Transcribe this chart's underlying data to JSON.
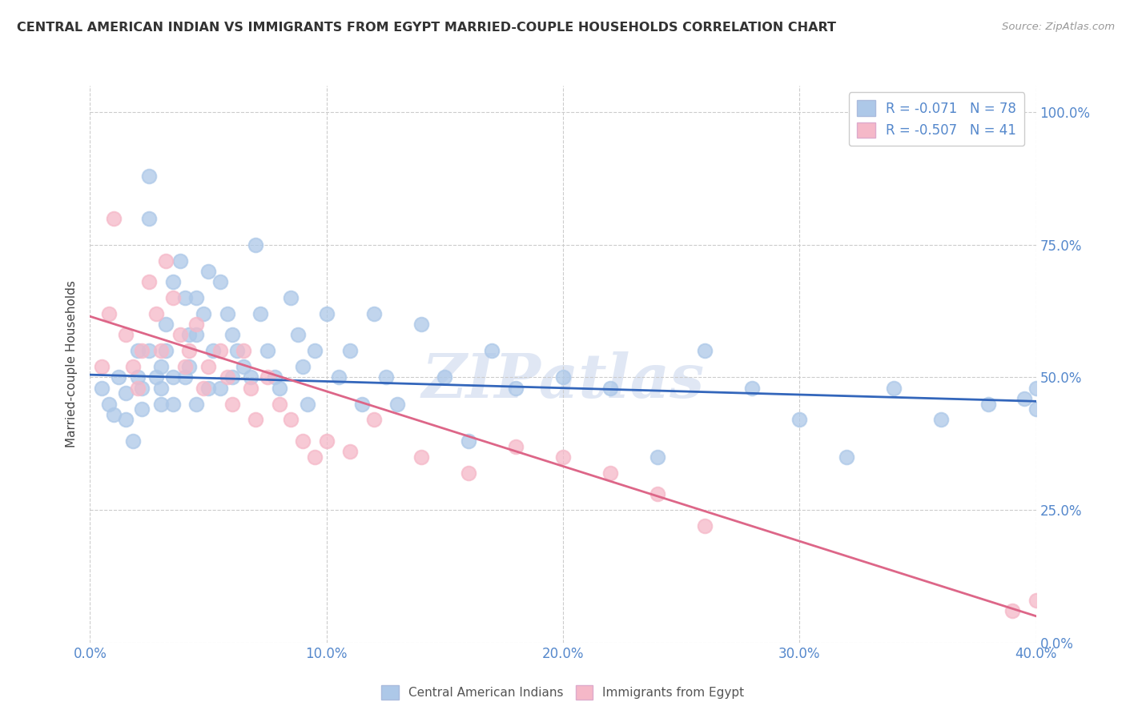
{
  "title": "CENTRAL AMERICAN INDIAN VS IMMIGRANTS FROM EGYPT MARRIED-COUPLE HOUSEHOLDS CORRELATION CHART",
  "source": "Source: ZipAtlas.com",
  "xlim": [
    0.0,
    0.4
  ],
  "ylim": [
    0.0,
    1.05
  ],
  "blue_R": -0.071,
  "blue_N": 78,
  "pink_R": -0.507,
  "pink_N": 41,
  "blue_color": "#adc8e8",
  "pink_color": "#f5b8c8",
  "blue_line_color": "#3366bb",
  "pink_line_color": "#dd6688",
  "legend_label_blue": "Central American Indians",
  "legend_label_pink": "Immigrants from Egypt",
  "watermark": "ZIPatlas",
  "tick_label_color": "#5588cc",
  "ylabel_label_color": "#444444",
  "blue_x": [
    0.005,
    0.008,
    0.01,
    0.012,
    0.015,
    0.015,
    0.018,
    0.02,
    0.02,
    0.022,
    0.022,
    0.025,
    0.025,
    0.025,
    0.028,
    0.03,
    0.03,
    0.03,
    0.032,
    0.032,
    0.035,
    0.035,
    0.035,
    0.038,
    0.04,
    0.04,
    0.042,
    0.042,
    0.045,
    0.045,
    0.045,
    0.048,
    0.05,
    0.05,
    0.052,
    0.055,
    0.055,
    0.058,
    0.06,
    0.06,
    0.062,
    0.065,
    0.068,
    0.07,
    0.072,
    0.075,
    0.078,
    0.08,
    0.085,
    0.088,
    0.09,
    0.092,
    0.095,
    0.1,
    0.105,
    0.11,
    0.115,
    0.12,
    0.125,
    0.13,
    0.14,
    0.15,
    0.16,
    0.17,
    0.18,
    0.2,
    0.22,
    0.24,
    0.26,
    0.28,
    0.3,
    0.32,
    0.34,
    0.36,
    0.38,
    0.395,
    0.4,
    0.4
  ],
  "blue_y": [
    0.48,
    0.45,
    0.43,
    0.5,
    0.47,
    0.42,
    0.38,
    0.5,
    0.55,
    0.48,
    0.44,
    0.88,
    0.8,
    0.55,
    0.5,
    0.48,
    0.52,
    0.45,
    0.6,
    0.55,
    0.68,
    0.5,
    0.45,
    0.72,
    0.65,
    0.5,
    0.58,
    0.52,
    0.65,
    0.58,
    0.45,
    0.62,
    0.7,
    0.48,
    0.55,
    0.68,
    0.48,
    0.62,
    0.58,
    0.5,
    0.55,
    0.52,
    0.5,
    0.75,
    0.62,
    0.55,
    0.5,
    0.48,
    0.65,
    0.58,
    0.52,
    0.45,
    0.55,
    0.62,
    0.5,
    0.55,
    0.45,
    0.62,
    0.5,
    0.45,
    0.6,
    0.5,
    0.38,
    0.55,
    0.48,
    0.5,
    0.48,
    0.35,
    0.55,
    0.48,
    0.42,
    0.35,
    0.48,
    0.42,
    0.45,
    0.46,
    0.44,
    0.48
  ],
  "pink_x": [
    0.005,
    0.008,
    0.01,
    0.015,
    0.018,
    0.02,
    0.022,
    0.025,
    0.028,
    0.03,
    0.032,
    0.035,
    0.038,
    0.04,
    0.042,
    0.045,
    0.048,
    0.05,
    0.055,
    0.058,
    0.06,
    0.065,
    0.068,
    0.07,
    0.075,
    0.08,
    0.085,
    0.09,
    0.095,
    0.1,
    0.11,
    0.12,
    0.14,
    0.16,
    0.18,
    0.2,
    0.22,
    0.24,
    0.26,
    0.39,
    0.4
  ],
  "pink_y": [
    0.52,
    0.62,
    0.8,
    0.58,
    0.52,
    0.48,
    0.55,
    0.68,
    0.62,
    0.55,
    0.72,
    0.65,
    0.58,
    0.52,
    0.55,
    0.6,
    0.48,
    0.52,
    0.55,
    0.5,
    0.45,
    0.55,
    0.48,
    0.42,
    0.5,
    0.45,
    0.42,
    0.38,
    0.35,
    0.38,
    0.36,
    0.42,
    0.35,
    0.32,
    0.37,
    0.35,
    0.32,
    0.28,
    0.22,
    0.06,
    0.08
  ],
  "blue_trend_x": [
    0.0,
    0.4
  ],
  "blue_trend_y": [
    0.505,
    0.455
  ],
  "pink_trend_x": [
    0.0,
    0.4
  ],
  "pink_trend_y": [
    0.615,
    0.05
  ],
  "xtick_positions": [
    0.0,
    0.1,
    0.2,
    0.3,
    0.4
  ],
  "xtick_labels": [
    "0.0%",
    "10.0%",
    "20.0%",
    "30.0%",
    "40.0%"
  ],
  "ytick_positions": [
    0.0,
    0.25,
    0.5,
    0.75,
    1.0
  ],
  "ytick_labels": [
    "0.0%",
    "25.0%",
    "50.0%",
    "75.0%",
    "100.0%"
  ]
}
